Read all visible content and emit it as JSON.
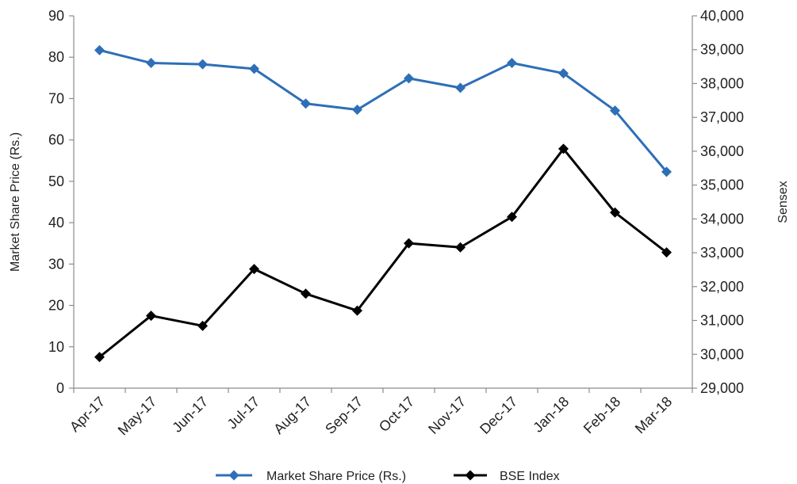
{
  "chart_data": {
    "type": "line",
    "title": "",
    "categories": [
      "Apr-17",
      "May-17",
      "Jun-17",
      "Jul-17",
      "Aug-17",
      "Sep-17",
      "Oct-17",
      "Nov-17",
      "Dec-17",
      "Jan-18",
      "Feb-18",
      "Mar-18"
    ],
    "y_left": {
      "label": "Market Share Price (Rs.)",
      "range": [
        0,
        90
      ],
      "ticks": [
        "0",
        "10",
        "20",
        "30",
        "40",
        "50",
        "60",
        "70",
        "80",
        "90"
      ]
    },
    "y_right": {
      "label": "Sensex",
      "range": [
        29000,
        40000
      ],
      "ticks": [
        "29,000",
        "30,000",
        "31,000",
        "32,000",
        "33,000",
        "34,000",
        "35,000",
        "36,000",
        "37,000",
        "38,000",
        "39,000",
        "40,000"
      ]
    },
    "grid": false,
    "legend_position": "bottom",
    "series": [
      {
        "name": "Market Share Price (Rs.)",
        "axis": "left",
        "color": "#2e6fb7",
        "marker": "diamond",
        "values": [
          81.7,
          78.6,
          78.3,
          77.2,
          68.8,
          67.3,
          74.9,
          72.6,
          78.6,
          76.1,
          67.1,
          52.3
        ]
      },
      {
        "name": "BSE Index",
        "axis": "right",
        "color": "#000000",
        "marker": "diamond",
        "values": [
          29920,
          31140,
          30840,
          32520,
          31790,
          31290,
          33280,
          33160,
          34060,
          36070,
          34190,
          33010
        ]
      }
    ]
  }
}
